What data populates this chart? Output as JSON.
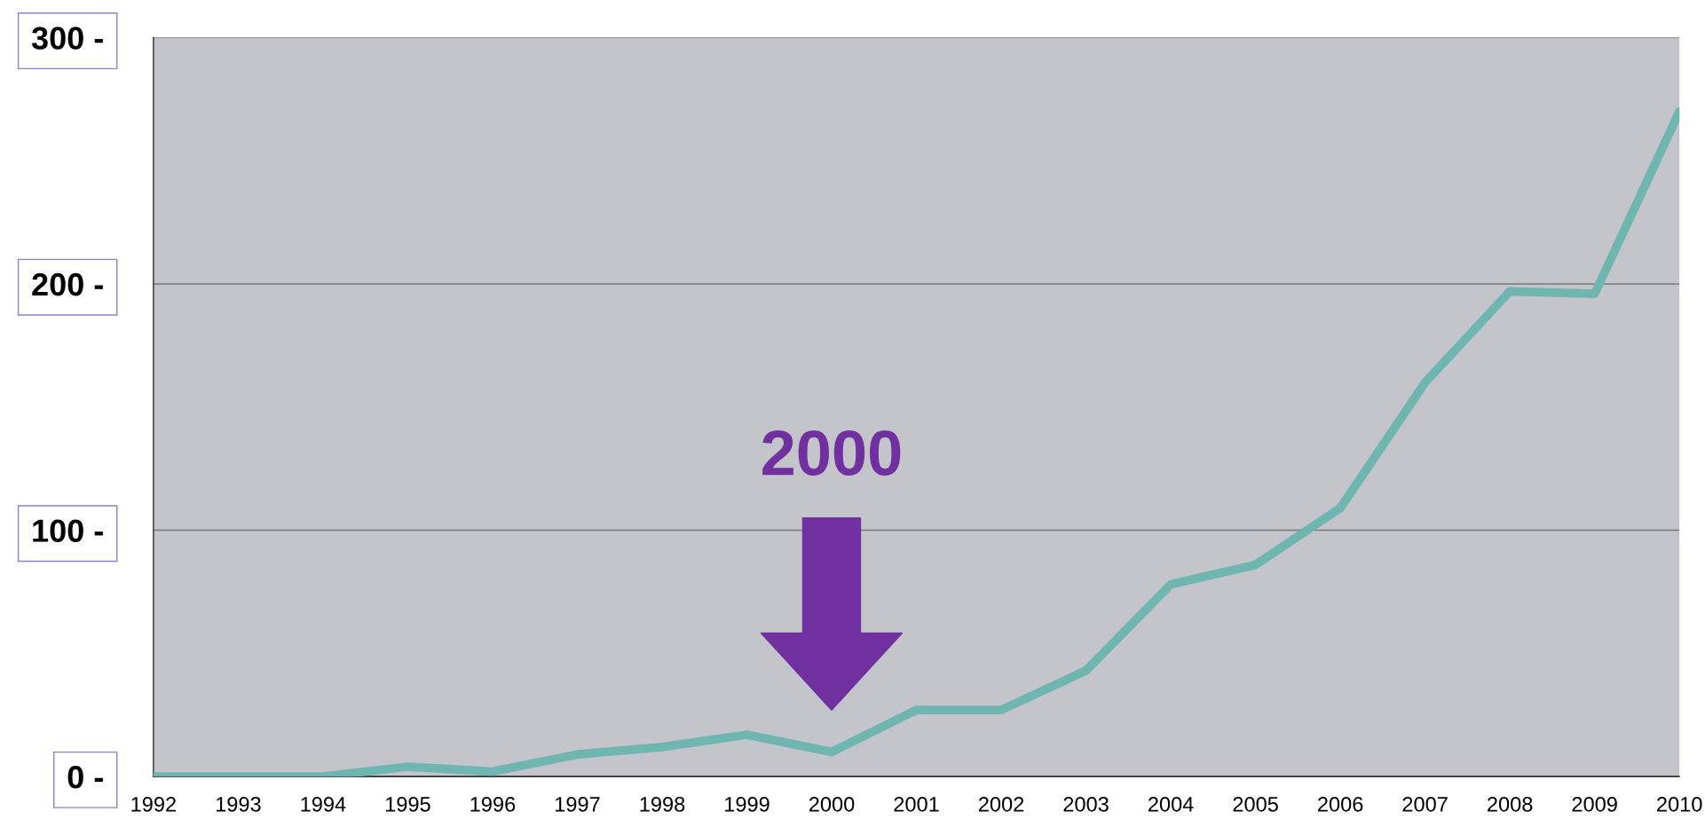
{
  "chart_data": {
    "type": "line",
    "x": [
      1992,
      1993,
      1994,
      1995,
      1996,
      1997,
      1998,
      1999,
      2000,
      2001,
      2002,
      2003,
      2004,
      2005,
      2006,
      2007,
      2008,
      2009,
      2010
    ],
    "series": [
      {
        "color": "#6fb5b0",
        "values": [
          0,
          0,
          0,
          4,
          2,
          9,
          12,
          17,
          10,
          27,
          27,
          43,
          78,
          86,
          109,
          160,
          197,
          196,
          270
        ]
      }
    ],
    "xlim": [
      1992,
      2010
    ],
    "xticks": [
      1992,
      1993,
      1994,
      1995,
      1996,
      1997,
      1998,
      1999,
      2000,
      2001,
      2002,
      2003,
      2004,
      2005,
      2006,
      2007,
      2008,
      2009,
      2010
    ],
    "ylim": [
      0,
      300
    ],
    "yticks": [
      {
        "value": 0,
        "label": "0 -"
      },
      {
        "value": 100,
        "label": "100 -"
      },
      {
        "value": 200,
        "label": "200 -"
      },
      {
        "value": 300,
        "label": "300 -"
      }
    ],
    "grid": "y",
    "marker": "none",
    "line_style": "solid",
    "annotations": [
      "2000"
    ]
  }
}
